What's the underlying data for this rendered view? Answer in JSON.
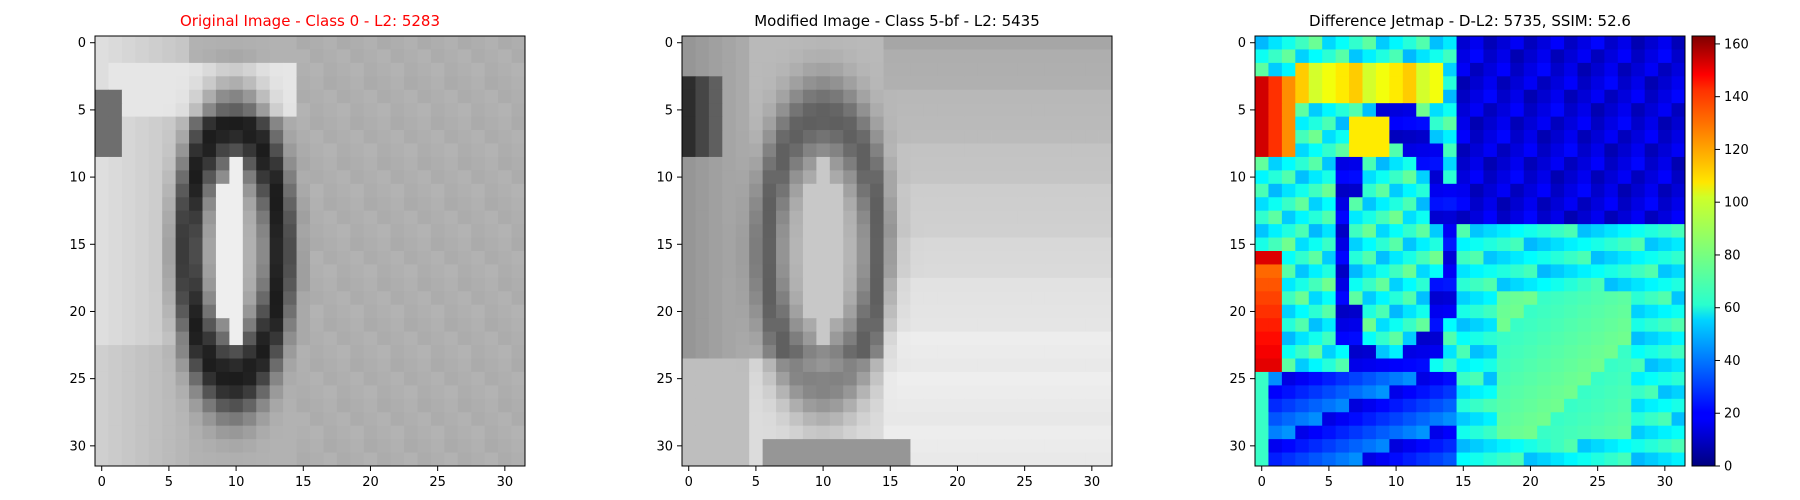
{
  "panels": [
    {
      "id": "original",
      "title": "Original Image - Class 0 - L2: 5283",
      "title_color": "#ff0000",
      "colormap": "gray",
      "x_ticks": [
        "0",
        "5",
        "10",
        "15",
        "20",
        "25",
        "30"
      ],
      "y_ticks": [
        "0",
        "5",
        "10",
        "15",
        "20",
        "25",
        "30"
      ]
    },
    {
      "id": "modified",
      "title": "Modified Image - Class 5-bf - L2: 5435",
      "title_color": "#000000",
      "colormap": "gray",
      "x_ticks": [
        "0",
        "5",
        "10",
        "15",
        "20",
        "25",
        "30"
      ],
      "y_ticks": [
        "0",
        "5",
        "10",
        "15",
        "20",
        "25",
        "30"
      ]
    },
    {
      "id": "difference",
      "title": "Difference Jetmap - D-L2: 5735, SSIM: 52.6",
      "title_color": "#000000",
      "colormap": "jet",
      "x_ticks": [
        "0",
        "5",
        "10",
        "15",
        "20",
        "25",
        "30"
      ],
      "y_ticks": [
        "0",
        "5",
        "10",
        "15",
        "20",
        "25",
        "30"
      ]
    }
  ],
  "colorbar": {
    "range": [
      0,
      163
    ],
    "ticks": [
      "0",
      "20",
      "40",
      "60",
      "80",
      "100",
      "120",
      "140",
      "160"
    ]
  },
  "image": {
    "rows": 32,
    "cols": 32
  }
}
